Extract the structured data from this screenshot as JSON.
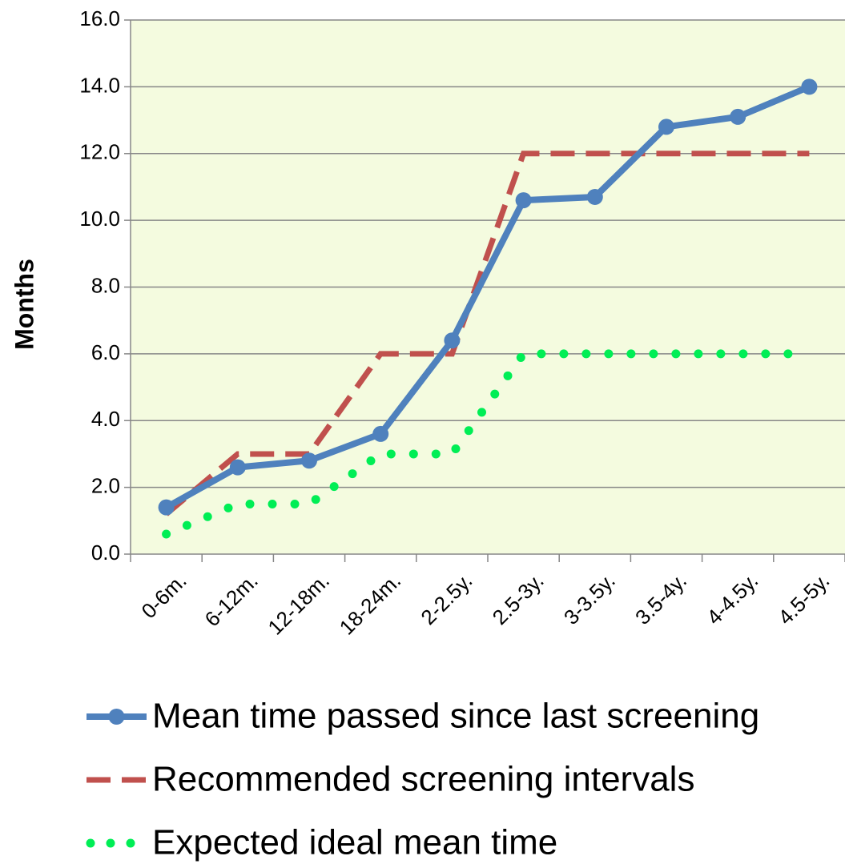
{
  "chart_data": {
    "type": "line",
    "y_label": "Months",
    "categories": [
      "0-6m.",
      "6-12m.",
      "12-18m.",
      "18-24m.",
      "2-2.5y.",
      "2.5-3y.",
      "3-3.5y.",
      "3.5-4y.",
      "4-4.5y.",
      "4.5-5y."
    ],
    "series": [
      {
        "name": "Mean time passed since last screening",
        "color": "#4f81bd",
        "line_style": "solid",
        "markers": true,
        "values": [
          1.4,
          2.6,
          2.8,
          3.6,
          6.4,
          10.6,
          10.7,
          12.8,
          13.1,
          14.0
        ]
      },
      {
        "name": "Recommended screening intervals",
        "color": "#c0504d",
        "line_style": "dashed",
        "markers": false,
        "values": [
          1.2,
          3,
          3,
          6,
          6,
          12,
          12,
          12,
          12,
          12
        ]
      },
      {
        "name": "Expected ideal mean time",
        "color": "#00ee55",
        "line_style": "dotted",
        "markers": false,
        "values": [
          0.6,
          1.5,
          1.5,
          3,
          3,
          6,
          6,
          6,
          6,
          6
        ]
      }
    ],
    "ylim": [
      0,
      16
    ],
    "yticks": [
      {
        "value": 0,
        "label": "0.0"
      },
      {
        "value": 2,
        "label": "2.0"
      },
      {
        "value": 4,
        "label": "4.0"
      },
      {
        "value": 6,
        "label": "6.0"
      },
      {
        "value": 8,
        "label": "8.0"
      },
      {
        "value": 10,
        "label": "10.0"
      },
      {
        "value": 12,
        "label": "12.0"
      },
      {
        "value": 14,
        "label": "14.0"
      },
      {
        "value": 16,
        "label": "16.0"
      }
    ],
    "grid": true,
    "legend": "bottom",
    "plot_background": "#f4fbdf"
  }
}
